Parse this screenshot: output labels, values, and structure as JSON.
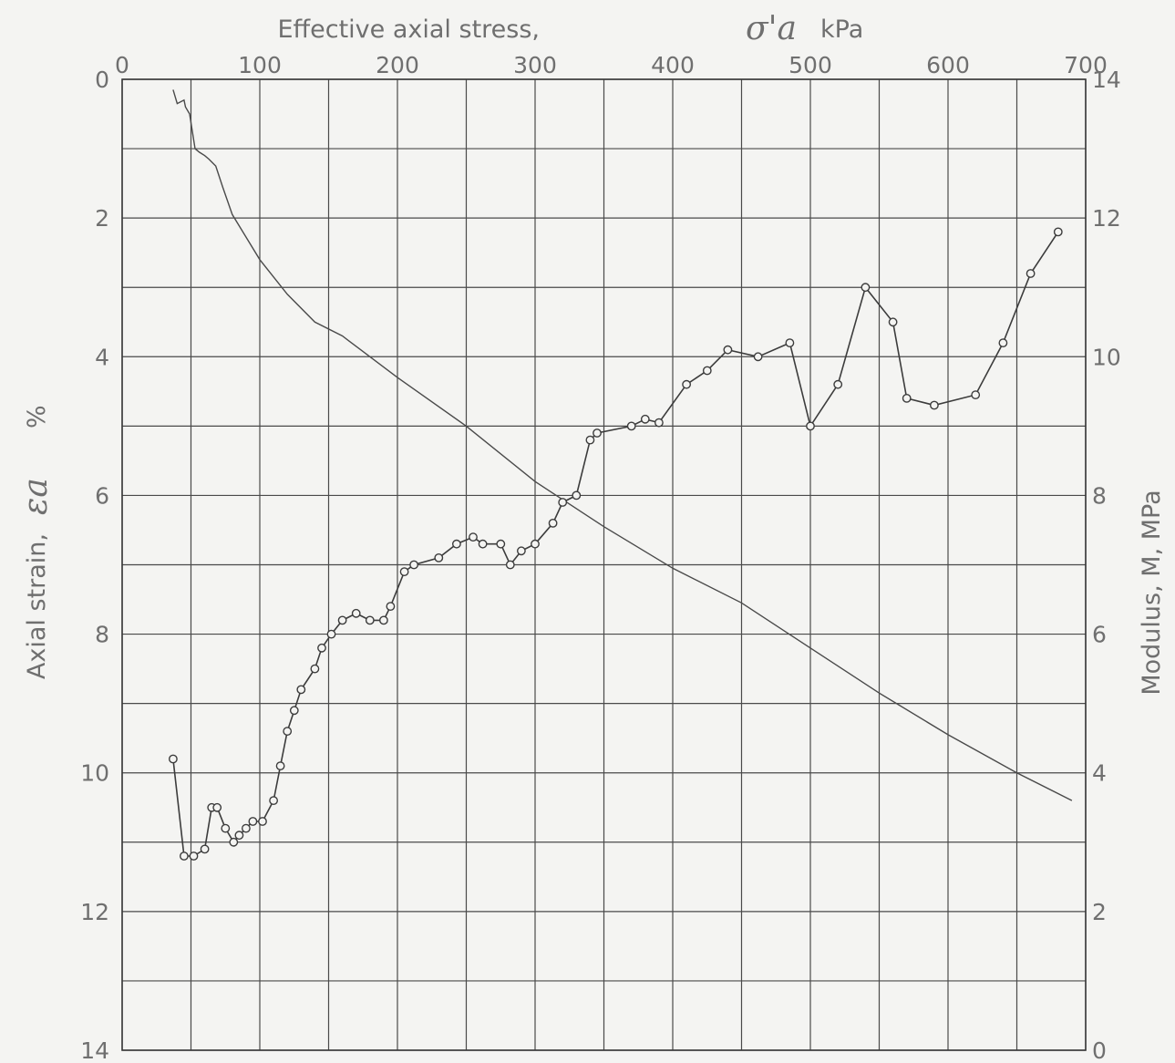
{
  "chart_data": {
    "type": "line",
    "title": "",
    "x_axis": {
      "label": "Effective axial stress,",
      "symbol": "σ'a",
      "unit": "kPa",
      "position": "top",
      "range": [
        0,
        700
      ],
      "ticks": [
        "0",
        "100",
        "200",
        "300",
        "400",
        "500",
        "600",
        "700"
      ]
    },
    "y_axis_left": {
      "label": "Axial strain,",
      "symbol": "εa",
      "unit": "%",
      "range": [
        0,
        14
      ],
      "inverted": true,
      "ticks": [
        "0",
        "2",
        "4",
        "6",
        "8",
        "10",
        "12",
        "14"
      ]
    },
    "y_axis_right": {
      "label": "Modulus, M, MPa",
      "range": [
        0,
        14
      ],
      "ticks": [
        "0",
        "2",
        "4",
        "6",
        "8",
        "10",
        "12",
        "14"
      ]
    },
    "grid": true,
    "series": [
      {
        "axis": "left",
        "style": "line",
        "x": [
          37,
          40,
          45,
          46,
          49,
          51,
          53,
          56,
          60,
          63,
          68,
          73,
          80,
          100,
          120,
          140,
          160,
          200,
          250,
          300,
          350,
          400,
          450,
          500,
          550,
          600,
          650,
          690
        ],
        "y": [
          0.15,
          0.35,
          0.3,
          0.4,
          0.5,
          0.75,
          1.0,
          1.05,
          1.1,
          1.15,
          1.25,
          1.55,
          1.95,
          2.6,
          3.1,
          3.5,
          3.7,
          4.3,
          5.0,
          5.8,
          6.45,
          7.05,
          7.55,
          8.2,
          8.85,
          9.45,
          10.0,
          10.4
        ]
      },
      {
        "axis": "right",
        "style": "line-markers",
        "marker": "open-circle",
        "x": [
          37,
          45,
          52,
          60,
          65,
          69,
          75,
          81,
          85,
          90,
          95,
          102,
          110,
          115,
          120,
          125,
          130,
          140,
          145,
          152,
          160,
          170,
          180,
          190,
          195,
          205,
          212,
          230,
          243,
          255,
          262,
          275,
          282,
          290,
          300,
          313,
          320,
          330,
          340,
          345,
          370,
          380,
          390,
          410,
          425,
          440,
          462,
          485,
          500,
          520,
          540,
          560,
          570,
          590,
          620,
          640,
          660,
          680
        ],
        "y": [
          4.2,
          2.8,
          2.8,
          2.9,
          3.5,
          3.5,
          3.2,
          3.0,
          3.1,
          3.2,
          3.3,
          3.3,
          3.6,
          4.1,
          4.6,
          4.9,
          5.2,
          5.5,
          5.8,
          6.0,
          6.2,
          6.3,
          6.2,
          6.2,
          6.4,
          6.9,
          7.0,
          7.1,
          7.3,
          7.4,
          7.3,
          7.3,
          7.0,
          7.2,
          7.3,
          7.6,
          7.9,
          8.0,
          8.8,
          8.9,
          9.0,
          9.1,
          9.05,
          9.6,
          9.8,
          10.1,
          10.0,
          10.2,
          9.0,
          9.6,
          11.0,
          10.5,
          9.4,
          9.3,
          9.45,
          10.2,
          11.2,
          11.8
        ]
      }
    ]
  }
}
